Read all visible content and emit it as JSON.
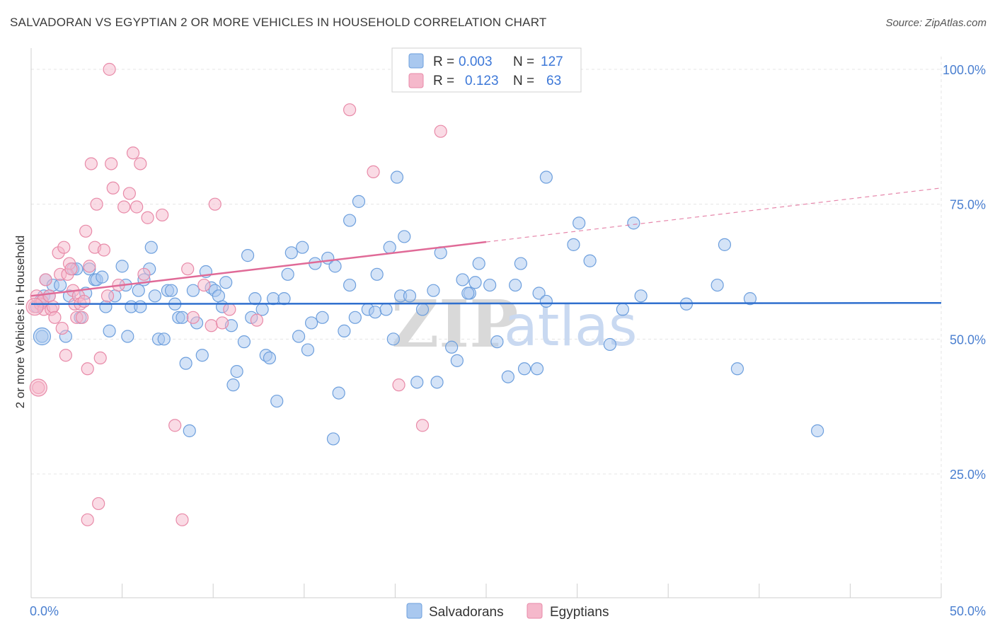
{
  "title": "SALVADORAN VS EGYPTIAN 2 OR MORE VEHICLES IN HOUSEHOLD CORRELATION CHART",
  "source": "Source: ZipAtlas.com",
  "watermark": {
    "part1": "ZIP",
    "part2": "atlas"
  },
  "chart_data": {
    "type": "scatter",
    "ylabel": "2 or more Vehicles in Household",
    "xlim": [
      0,
      50
    ],
    "ylim": [
      0,
      105
    ],
    "x_tick_labels": [
      {
        "value": 0,
        "label": "0.0%"
      },
      {
        "value": 50,
        "label": "50.0%"
      }
    ],
    "y_tick_labels": [
      {
        "value": 100,
        "label": "100.0%"
      },
      {
        "value": 75,
        "label": "75.0%"
      },
      {
        "value": 50,
        "label": "50.0%"
      },
      {
        "value": 25,
        "label": "25.0%"
      }
    ],
    "x_minor_ticks": [
      0,
      5,
      10,
      15,
      20,
      25,
      30,
      35,
      40,
      45,
      50
    ],
    "legend": [
      {
        "label_r": "R = ",
        "r": "0.003",
        "label_n": "N = ",
        "n": "127",
        "color": "#a9c8ef"
      },
      {
        "label_r": "R = ",
        "r": "0.123",
        "label_n": "N = ",
        "n": "63",
        "color": "#f5b8cb"
      }
    ],
    "series": [
      {
        "name": "Salvadorans",
        "color": "#6d9fdd",
        "fill": "#a9c8ef",
        "trend": {
          "x": [
            0,
            50
          ],
          "y": [
            56.5,
            56.7
          ],
          "color": "#2f6fce",
          "dashed_after": null
        },
        "points": [
          [
            0.3,
            56
          ],
          [
            0.5,
            57
          ],
          [
            0.6,
            50.5
          ],
          [
            0.7,
            58
          ],
          [
            0.8,
            61
          ],
          [
            1.0,
            58
          ],
          [
            1.2,
            60
          ],
          [
            1.6,
            60
          ],
          [
            1.9,
            50.5
          ],
          [
            2.1,
            58
          ],
          [
            2.3,
            63
          ],
          [
            2.5,
            63
          ],
          [
            2.7,
            54
          ],
          [
            3.0,
            58.5
          ],
          [
            3.2,
            63
          ],
          [
            3.5,
            61
          ],
          [
            3.6,
            61
          ],
          [
            3.9,
            61.5
          ],
          [
            4.1,
            56
          ],
          [
            4.3,
            51.5
          ],
          [
            4.6,
            58
          ],
          [
            5.0,
            63.5
          ],
          [
            5.2,
            60
          ],
          [
            5.3,
            50.5
          ],
          [
            5.5,
            56
          ],
          [
            5.9,
            59
          ],
          [
            6.0,
            56
          ],
          [
            6.2,
            61
          ],
          [
            6.5,
            63
          ],
          [
            6.6,
            67
          ],
          [
            6.8,
            58
          ],
          [
            7.0,
            50
          ],
          [
            7.3,
            50
          ],
          [
            7.5,
            59
          ],
          [
            7.7,
            59
          ],
          [
            7.9,
            56.5
          ],
          [
            8.1,
            54
          ],
          [
            8.3,
            54
          ],
          [
            8.5,
            45.5
          ],
          [
            8.7,
            33
          ],
          [
            8.9,
            59
          ],
          [
            9.1,
            53
          ],
          [
            9.4,
            47
          ],
          [
            9.6,
            62.5
          ],
          [
            9.9,
            59.5
          ],
          [
            10.1,
            59
          ],
          [
            10.3,
            58
          ],
          [
            10.5,
            56
          ],
          [
            10.7,
            60.5
          ],
          [
            11.0,
            52.5
          ],
          [
            11.3,
            44
          ],
          [
            11.1,
            41.5
          ],
          [
            11.7,
            49.5
          ],
          [
            11.9,
            65.5
          ],
          [
            12.1,
            54
          ],
          [
            12.3,
            57.5
          ],
          [
            12.7,
            55.5
          ],
          [
            12.9,
            47
          ],
          [
            13.1,
            46.5
          ],
          [
            13.3,
            57.5
          ],
          [
            13.5,
            38.5
          ],
          [
            13.9,
            57.5
          ],
          [
            14.1,
            62
          ],
          [
            14.3,
            66
          ],
          [
            14.7,
            50.5
          ],
          [
            14.9,
            67
          ],
          [
            15.2,
            48
          ],
          [
            15.4,
            53
          ],
          [
            15.6,
            64
          ],
          [
            16.0,
            54
          ],
          [
            16.3,
            65
          ],
          [
            16.6,
            31.5
          ],
          [
            16.9,
            40
          ],
          [
            16.7,
            63.5
          ],
          [
            17.2,
            51.5
          ],
          [
            17.5,
            72
          ],
          [
            17.5,
            60
          ],
          [
            17.8,
            54
          ],
          [
            18.0,
            75.5
          ],
          [
            18.5,
            55.5
          ],
          [
            18.9,
            55
          ],
          [
            19.0,
            62
          ],
          [
            19.5,
            55.5
          ],
          [
            19.7,
            67
          ],
          [
            19.9,
            50
          ],
          [
            20.3,
            58
          ],
          [
            20.8,
            58
          ],
          [
            20.1,
            80
          ],
          [
            20.5,
            69
          ],
          [
            21.2,
            42
          ],
          [
            21.5,
            55.5
          ],
          [
            22.3,
            42
          ],
          [
            22.1,
            59
          ],
          [
            22.5,
            66
          ],
          [
            23.1,
            48.5
          ],
          [
            23.4,
            46
          ],
          [
            23.7,
            61
          ],
          [
            24.1,
            58.5
          ],
          [
            24.4,
            60.5
          ],
          [
            24.0,
            58.5
          ],
          [
            24.6,
            64
          ],
          [
            25.2,
            60
          ],
          [
            25.6,
            49.5
          ],
          [
            26.2,
            43
          ],
          [
            26.6,
            60
          ],
          [
            26.9,
            64
          ],
          [
            27.1,
            44.5
          ],
          [
            27.8,
            44.5
          ],
          [
            27.9,
            58.5
          ],
          [
            28.3,
            57
          ],
          [
            28.3,
            80
          ],
          [
            29.8,
            67.5
          ],
          [
            30.1,
            71.5
          ],
          [
            30.7,
            64.5
          ],
          [
            31.8,
            49
          ],
          [
            32.5,
            55.5
          ],
          [
            33.1,
            71.5
          ],
          [
            33.5,
            58
          ],
          [
            36.0,
            56.5
          ],
          [
            37.7,
            60
          ],
          [
            38.1,
            67.5
          ],
          [
            38.8,
            44.5
          ],
          [
            39.5,
            57.5
          ],
          [
            43.2,
            33
          ]
        ],
        "big_points": [
          [
            0.6,
            50.5
          ]
        ]
      },
      {
        "name": "Egyptians",
        "color": "#e88aa8",
        "fill": "#f5b8cb",
        "trend": {
          "x": [
            0,
            25
          ],
          "y": [
            58,
            68
          ],
          "color": "#e06a97",
          "dashed_to": [
            50,
            78
          ]
        },
        "points": [
          [
            0.2,
            56
          ],
          [
            0.3,
            58
          ],
          [
            0.4,
            41
          ],
          [
            0.5,
            56.5
          ],
          [
            0.6,
            57
          ],
          [
            0.7,
            55.5
          ],
          [
            0.8,
            61
          ],
          [
            1.0,
            58
          ],
          [
            1.1,
            55.5
          ],
          [
            1.2,
            56
          ],
          [
            1.3,
            54
          ],
          [
            1.5,
            66
          ],
          [
            1.6,
            62
          ],
          [
            1.7,
            52
          ],
          [
            1.8,
            67
          ],
          [
            1.9,
            47
          ],
          [
            2.0,
            62
          ],
          [
            2.1,
            64
          ],
          [
            2.2,
            63
          ],
          [
            2.3,
            59
          ],
          [
            2.4,
            56.5
          ],
          [
            2.5,
            54
          ],
          [
            2.6,
            58
          ],
          [
            2.7,
            56.5
          ],
          [
            2.8,
            54
          ],
          [
            2.9,
            57
          ],
          [
            3.0,
            70
          ],
          [
            3.1,
            44.5
          ],
          [
            3.2,
            63.5
          ],
          [
            3.3,
            82.5
          ],
          [
            3.5,
            67
          ],
          [
            3.6,
            75
          ],
          [
            3.7,
            19.5
          ],
          [
            3.8,
            46.5
          ],
          [
            4.0,
            66.5
          ],
          [
            4.2,
            58
          ],
          [
            4.4,
            82.5
          ],
          [
            4.5,
            78
          ],
          [
            4.8,
            60
          ],
          [
            5.1,
            74.5
          ],
          [
            5.4,
            77
          ],
          [
            5.6,
            84.5
          ],
          [
            5.8,
            74.5
          ],
          [
            6.0,
            82.5
          ],
          [
            6.2,
            62
          ],
          [
            6.4,
            72.5
          ],
          [
            7.2,
            73
          ],
          [
            7.9,
            34
          ],
          [
            8.6,
            63
          ],
          [
            8.9,
            54
          ],
          [
            9.5,
            60
          ],
          [
            9.9,
            52.5
          ],
          [
            10.1,
            75
          ],
          [
            10.5,
            53
          ],
          [
            10.9,
            55.5
          ],
          [
            12.4,
            53.5
          ],
          [
            17.5,
            92.5
          ],
          [
            18.8,
            81
          ],
          [
            20.2,
            41.5
          ],
          [
            21.5,
            34
          ],
          [
            22.5,
            88.5
          ],
          [
            3.1,
            16.5
          ],
          [
            8.3,
            16.5
          ],
          [
            4.3,
            100
          ]
        ],
        "big_points": [
          [
            0.2,
            56
          ],
          [
            0.4,
            41
          ]
        ]
      }
    ]
  },
  "bottom_legend": [
    {
      "label": "Salvadorans"
    },
    {
      "label": "Egyptians"
    }
  ]
}
